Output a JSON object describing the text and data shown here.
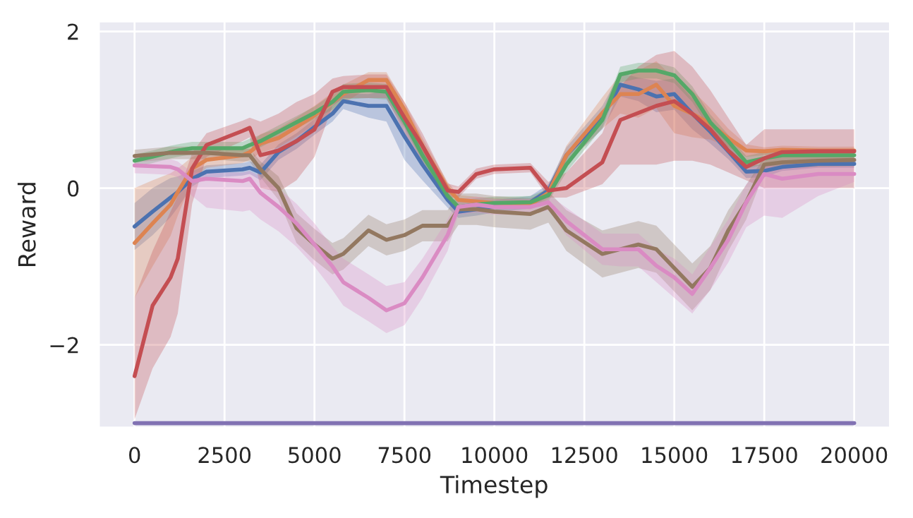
{
  "chart_data": {
    "type": "line",
    "xlabel": "Timestep",
    "ylabel": "Reward",
    "x": [
      0,
      500,
      1000,
      1200,
      1600,
      2000,
      3000,
      3200,
      3500,
      4000,
      4500,
      5000,
      5500,
      5800,
      6500,
      7000,
      7500,
      8000,
      8700,
      9000,
      9500,
      10000,
      11000,
      11500,
      12000,
      13000,
      13500,
      14000,
      14500,
      15000,
      15500,
      16000,
      16500,
      17000,
      17500,
      18000,
      19000,
      20000
    ],
    "series": [
      {
        "color": "#4c72b0",
        "values": [
          -0.49,
          -0.3,
          -0.12,
          -0.05,
          0.12,
          0.21,
          0.24,
          0.26,
          0.2,
          0.46,
          0.6,
          0.78,
          0.95,
          1.11,
          1.05,
          1.05,
          0.66,
          0.3,
          -0.15,
          -0.3,
          -0.27,
          -0.23,
          -0.18,
          -0.03,
          0.42,
          0.9,
          1.32,
          1.26,
          1.17,
          1.2,
          0.95,
          0.72,
          0.47,
          0.21,
          0.22,
          0.27,
          0.31,
          0.31
        ],
        "lower": [
          -0.79,
          -0.6,
          -0.37,
          -0.25,
          0.02,
          0.13,
          0.16,
          0.18,
          0.1,
          0.36,
          0.5,
          0.68,
          0.85,
          1.01,
          0.9,
          0.85,
          0.36,
          0.1,
          -0.25,
          -0.38,
          -0.35,
          -0.31,
          -0.26,
          -0.11,
          0.32,
          0.75,
          1.17,
          1.11,
          0.97,
          1.0,
          0.75,
          0.57,
          0.37,
          0.13,
          0.14,
          0.22,
          0.26,
          0.26
        ],
        "upper": [
          -0.19,
          0.0,
          0.13,
          0.15,
          0.22,
          0.29,
          0.32,
          0.34,
          0.3,
          0.56,
          0.7,
          0.88,
          1.05,
          1.21,
          1.2,
          1.25,
          0.96,
          0.5,
          -0.05,
          -0.22,
          -0.19,
          -0.15,
          -0.1,
          0.05,
          0.52,
          1.05,
          1.47,
          1.41,
          1.37,
          1.4,
          1.15,
          0.87,
          0.57,
          0.29,
          0.3,
          0.32,
          0.36,
          0.36
        ]
      },
      {
        "color": "#dd8452",
        "values": [
          -0.7,
          -0.45,
          -0.21,
          -0.05,
          0.25,
          0.36,
          0.42,
          0.46,
          0.57,
          0.64,
          0.78,
          0.93,
          1.1,
          1.2,
          1.38,
          1.38,
          1.0,
          0.54,
          0.0,
          -0.15,
          -0.17,
          -0.19,
          -0.21,
          -0.06,
          0.42,
          0.96,
          1.2,
          1.2,
          1.32,
          1.05,
          0.95,
          0.82,
          0.64,
          0.48,
          0.47,
          0.49,
          0.48,
          0.48
        ],
        "lower": [
          -1.4,
          -1.0,
          -0.61,
          -0.35,
          0.1,
          0.26,
          0.32,
          0.36,
          0.45,
          0.52,
          0.66,
          0.81,
          0.98,
          1.08,
          1.28,
          1.28,
          0.9,
          0.44,
          -0.08,
          -0.21,
          -0.23,
          -0.25,
          -0.27,
          -0.14,
          0.3,
          0.76,
          0.95,
          0.9,
          1.02,
          0.7,
          0.65,
          0.62,
          0.52,
          0.4,
          0.42,
          0.44,
          0.43,
          0.43
        ],
        "upper": [
          0.0,
          0.1,
          0.19,
          0.25,
          0.4,
          0.46,
          0.52,
          0.56,
          0.69,
          0.76,
          0.9,
          1.05,
          1.22,
          1.32,
          1.48,
          1.48,
          1.1,
          0.64,
          0.08,
          -0.09,
          -0.11,
          -0.13,
          -0.15,
          0.02,
          0.54,
          1.16,
          1.45,
          1.5,
          1.62,
          1.4,
          1.25,
          1.02,
          0.76,
          0.56,
          0.52,
          0.54,
          0.53,
          0.53
        ]
      },
      {
        "color": "#55a868",
        "values": [
          0.35,
          0.4,
          0.46,
          0.48,
          0.51,
          0.51,
          0.51,
          0.55,
          0.6,
          0.72,
          0.84,
          0.96,
          1.1,
          1.23,
          1.25,
          1.23,
          0.85,
          0.42,
          -0.1,
          -0.24,
          -0.21,
          -0.19,
          -0.18,
          -0.09,
          0.3,
          0.87,
          1.45,
          1.5,
          1.5,
          1.44,
          1.2,
          0.84,
          0.6,
          0.33,
          0.38,
          0.42,
          0.42,
          0.42
        ],
        "lower": [
          0.27,
          0.32,
          0.38,
          0.4,
          0.43,
          0.43,
          0.43,
          0.47,
          0.52,
          0.64,
          0.76,
          0.88,
          1.0,
          1.13,
          1.15,
          1.13,
          0.77,
          0.34,
          -0.18,
          -0.32,
          -0.29,
          -0.27,
          -0.26,
          -0.17,
          0.2,
          0.77,
          1.35,
          1.4,
          1.4,
          1.34,
          1.1,
          0.74,
          0.52,
          0.25,
          0.3,
          0.34,
          0.34,
          0.34
        ],
        "upper": [
          0.43,
          0.48,
          0.54,
          0.56,
          0.59,
          0.59,
          0.59,
          0.63,
          0.68,
          0.8,
          0.92,
          1.04,
          1.2,
          1.33,
          1.35,
          1.33,
          0.93,
          0.5,
          -0.02,
          -0.16,
          -0.13,
          -0.11,
          -0.1,
          -0.01,
          0.4,
          0.97,
          1.55,
          1.6,
          1.6,
          1.54,
          1.3,
          0.94,
          0.68,
          0.41,
          0.46,
          0.5,
          0.5,
          0.5
        ]
      },
      {
        "color": "#c44e52",
        "values": [
          -2.4,
          -1.5,
          -1.14,
          -0.9,
          0.25,
          0.55,
          0.73,
          0.77,
          0.42,
          0.48,
          0.6,
          0.75,
          1.23,
          1.29,
          1.29,
          1.29,
          0.9,
          0.54,
          -0.03,
          -0.05,
          0.18,
          0.24,
          0.26,
          -0.03,
          0.0,
          0.33,
          0.87,
          0.96,
          1.05,
          1.11,
          0.95,
          0.75,
          0.48,
          0.27,
          0.38,
          0.46,
          0.47,
          0.47
        ],
        "lower": [
          -2.95,
          -2.3,
          -1.9,
          -1.6,
          -0.2,
          0.4,
          0.6,
          0.65,
          0.0,
          -0.05,
          0.1,
          0.4,
          1.05,
          1.15,
          1.15,
          1.15,
          0.7,
          0.35,
          -0.12,
          -0.12,
          0.12,
          0.18,
          0.2,
          -0.12,
          -0.12,
          0.05,
          0.3,
          0.3,
          0.3,
          0.35,
          0.35,
          0.3,
          0.2,
          0.1,
          0.0,
          0.0,
          0.0,
          0.0
        ],
        "upper": [
          -1.4,
          -0.8,
          -0.3,
          -0.1,
          0.45,
          0.7,
          0.86,
          0.9,
          0.85,
          0.95,
          1.1,
          1.2,
          1.4,
          1.43,
          1.45,
          1.45,
          1.1,
          0.7,
          0.06,
          0.02,
          0.25,
          0.3,
          0.32,
          0.08,
          0.2,
          0.7,
          1.3,
          1.55,
          1.7,
          1.75,
          1.55,
          1.25,
          0.9,
          0.55,
          0.75,
          0.75,
          0.75,
          0.75
        ]
      },
      {
        "color": "#8172b3",
        "values": [
          -3,
          -3,
          -3,
          -3,
          -3,
          -3,
          -3,
          -3,
          -3,
          -3,
          -3,
          -3,
          -3,
          -3,
          -3,
          -3,
          -3,
          -3,
          -3,
          -3,
          -3,
          -3,
          -3,
          -3,
          -3,
          -3,
          -3,
          -3,
          -3,
          -3,
          -3,
          -3,
          -3,
          -3,
          -3,
          -3,
          -3,
          -3
        ]
      },
      {
        "color": "#937860",
        "values": [
          0.41,
          0.43,
          0.45,
          0.45,
          0.45,
          0.45,
          0.42,
          0.42,
          0.24,
          0.0,
          -0.51,
          -0.72,
          -0.9,
          -0.84,
          -0.54,
          -0.66,
          -0.6,
          -0.48,
          -0.48,
          -0.27,
          -0.27,
          -0.3,
          -0.33,
          -0.24,
          -0.54,
          -0.84,
          -0.78,
          -0.72,
          -0.78,
          -1.02,
          -1.26,
          -1.02,
          -0.54,
          -0.18,
          0.3,
          0.33,
          0.35,
          0.36
        ],
        "lower": [
          0.33,
          0.35,
          0.37,
          0.37,
          0.37,
          0.37,
          0.34,
          0.34,
          0.14,
          -0.15,
          -0.7,
          -0.92,
          -1.1,
          -1.04,
          -0.74,
          -0.86,
          -0.8,
          -0.68,
          -0.68,
          -0.47,
          -0.47,
          -0.5,
          -0.53,
          -0.44,
          -0.8,
          -1.14,
          -1.08,
          -1.02,
          -1.08,
          -1.32,
          -1.56,
          -1.3,
          -0.8,
          -0.4,
          0.2,
          0.25,
          0.27,
          0.28
        ],
        "upper": [
          0.49,
          0.51,
          0.53,
          0.53,
          0.53,
          0.53,
          0.5,
          0.5,
          0.34,
          0.15,
          -0.32,
          -0.52,
          -0.7,
          -0.64,
          -0.34,
          -0.46,
          -0.4,
          -0.28,
          -0.28,
          -0.07,
          -0.07,
          -0.1,
          -0.13,
          -0.04,
          -0.28,
          -0.54,
          -0.48,
          -0.42,
          -0.48,
          -0.72,
          -0.96,
          -0.74,
          -0.28,
          0.04,
          0.4,
          0.41,
          0.43,
          0.44
        ]
      },
      {
        "color": "#da8bc3",
        "values": [
          0.29,
          0.28,
          0.27,
          0.24,
          0.09,
          0.12,
          0.09,
          0.12,
          -0.06,
          -0.24,
          -0.45,
          -0.72,
          -1.0,
          -1.2,
          -1.4,
          -1.56,
          -1.47,
          -1.14,
          -0.6,
          -0.24,
          -0.21,
          -0.24,
          -0.24,
          -0.18,
          -0.42,
          -0.78,
          -0.78,
          -0.78,
          -0.99,
          -1.14,
          -1.35,
          -1.02,
          -0.66,
          -0.18,
          0.18,
          0.12,
          0.18,
          0.18
        ],
        "lower": [
          0.19,
          0.18,
          0.17,
          0.14,
          -0.1,
          -0.25,
          -0.3,
          -0.28,
          -0.4,
          -0.55,
          -0.75,
          -1.0,
          -1.3,
          -1.5,
          -1.7,
          -1.85,
          -1.75,
          -1.4,
          -0.8,
          -0.34,
          -0.31,
          -0.34,
          -0.34,
          -0.28,
          -0.6,
          -0.98,
          -1.0,
          -1.0,
          -1.2,
          -1.4,
          -1.6,
          -1.3,
          -0.95,
          -0.5,
          -0.35,
          -0.38,
          -0.1,
          0.08
        ],
        "upper": [
          0.39,
          0.38,
          0.37,
          0.34,
          0.2,
          0.2,
          0.2,
          0.22,
          0.15,
          0.0,
          -0.2,
          -0.45,
          -0.75,
          -0.9,
          -1.1,
          -1.25,
          -1.2,
          -0.9,
          -0.4,
          -0.14,
          -0.11,
          -0.14,
          -0.14,
          -0.08,
          -0.25,
          -0.58,
          -0.58,
          -0.58,
          -0.78,
          -0.9,
          -1.1,
          -0.75,
          -0.4,
          0.05,
          0.3,
          0.25,
          0.28,
          0.28
        ]
      }
    ],
    "xlim": [
      -1000,
      21000
    ],
    "ylim": [
      -3.06,
      2.13
    ],
    "xticks": [
      0,
      2500,
      5000,
      7500,
      10000,
      12500,
      15000,
      17500,
      20000
    ],
    "yticks": [
      {
        "value": -2,
        "label": "−2"
      },
      0,
      2
    ],
    "grid": true,
    "marker": "none",
    "line_style": "solid"
  }
}
